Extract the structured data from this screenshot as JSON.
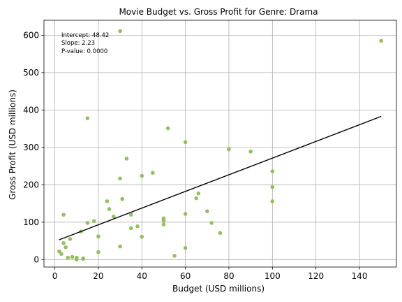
{
  "chart_data": {
    "type": "scatter",
    "title": "Movie Budget vs. Gross Profit for Genre: Drama",
    "xlabel": "Budget (USD millions)",
    "ylabel": "Gross Profit (USD millions)",
    "xlim": [
      -5,
      157
    ],
    "ylim": [
      -20,
      640
    ],
    "xticks": [
      0,
      20,
      40,
      60,
      80,
      100,
      120,
      140
    ],
    "yticks": [
      0,
      100,
      200,
      300,
      400,
      500,
      600
    ],
    "grid": true,
    "point_color": "#8fbc5a",
    "line_color": "#000000",
    "annotation": [
      "Intercept: 48.42",
      "Slope: 2.23",
      "P-value: 0.0000"
    ],
    "regression": {
      "intercept": 48.42,
      "slope": 2.23,
      "x_range": [
        2,
        150
      ]
    },
    "points": [
      {
        "x": 2,
        "y": 22
      },
      {
        "x": 3,
        "y": 15
      },
      {
        "x": 4,
        "y": 44
      },
      {
        "x": 4,
        "y": 120
      },
      {
        "x": 5,
        "y": 33
      },
      {
        "x": 6,
        "y": 5
      },
      {
        "x": 7,
        "y": 55
      },
      {
        "x": 8,
        "y": 7
      },
      {
        "x": 10,
        "y": 0
      },
      {
        "x": 10,
        "y": 5
      },
      {
        "x": 12,
        "y": 75
      },
      {
        "x": 13,
        "y": 3
      },
      {
        "x": 13,
        "y": 2
      },
      {
        "x": 15,
        "y": 98
      },
      {
        "x": 15,
        "y": 378
      },
      {
        "x": 18,
        "y": 103
      },
      {
        "x": 20,
        "y": 20
      },
      {
        "x": 20,
        "y": 62
      },
      {
        "x": 24,
        "y": 156
      },
      {
        "x": 25,
        "y": 135
      },
      {
        "x": 27,
        "y": 115
      },
      {
        "x": 30,
        "y": 35
      },
      {
        "x": 30,
        "y": 217
      },
      {
        "x": 30,
        "y": 611
      },
      {
        "x": 31,
        "y": 162
      },
      {
        "x": 33,
        "y": 270
      },
      {
        "x": 35,
        "y": 84
      },
      {
        "x": 35,
        "y": 120
      },
      {
        "x": 38,
        "y": 89
      },
      {
        "x": 40,
        "y": 224
      },
      {
        "x": 40,
        "y": 61
      },
      {
        "x": 45,
        "y": 232
      },
      {
        "x": 50,
        "y": 110
      },
      {
        "x": 50,
        "y": 104
      },
      {
        "x": 50,
        "y": 94
      },
      {
        "x": 52,
        "y": 351
      },
      {
        "x": 55,
        "y": 10
      },
      {
        "x": 60,
        "y": 314
      },
      {
        "x": 60,
        "y": 122
      },
      {
        "x": 60,
        "y": 31
      },
      {
        "x": 65,
        "y": 164
      },
      {
        "x": 66,
        "y": 177
      },
      {
        "x": 70,
        "y": 129
      },
      {
        "x": 72,
        "y": 98
      },
      {
        "x": 76,
        "y": 71
      },
      {
        "x": 80,
        "y": 295
      },
      {
        "x": 90,
        "y": 289
      },
      {
        "x": 100,
        "y": 236
      },
      {
        "x": 100,
        "y": 194
      },
      {
        "x": 100,
        "y": 156
      },
      {
        "x": 150,
        "y": 585
      }
    ]
  }
}
